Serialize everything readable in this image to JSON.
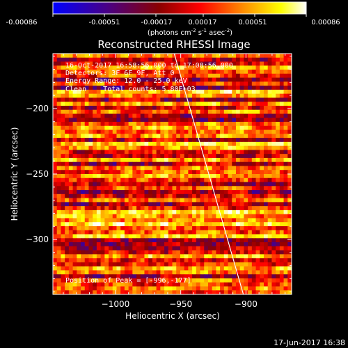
{
  "colorbar": {
    "ticks": [
      "-0.00086",
      "-0.00051",
      "-0.00017",
      "0.00017",
      "0.00051",
      "0.00086"
    ],
    "units_prefix": "(photons cm",
    "units_exp1": "-2",
    "units_mid1": " s",
    "units_exp2": "-1",
    "units_mid2": " asec",
    "units_exp3": "-2",
    "units_suffix": ")",
    "min": -0.00086,
    "max": 0.00086
  },
  "title": "Reconstructed RHESSI Image",
  "annotations": {
    "time_range": "16-Oct-2017 16:58:56.000 to 17:08:56.000",
    "detectors": "Detectors: 3F 6F 9F, Att 0",
    "energy": "Energy Range: 12.0 - 25.0 keV",
    "clean": "Clean    Total counts: 5.80E+03",
    "peak": "Position of Peak = [-996,-177]"
  },
  "footer": {
    "timestamp": "17-Jun-2017 16:38"
  },
  "chart_data": {
    "type": "heatmap",
    "title": "Reconstructed RHESSI Image",
    "xlabel": "Heliocentric X (arcsec)",
    "ylabel": "Heliocentric Y (arcsec)",
    "xlim": [
      -1048,
      -865
    ],
    "ylim": [
      -342,
      -158
    ],
    "x_ticks": [
      -1000,
      -950,
      -900
    ],
    "x_tick_labels": [
      "−1000",
      "−950",
      "−900"
    ],
    "y_ticks": [
      -200,
      -250,
      -300
    ],
    "y_tick_labels": [
      "−200",
      "−250",
      "−300"
    ],
    "limb_line": [
      [
        -955,
        -158
      ],
      [
        -902,
        -342
      ]
    ],
    "peak": [
      -996,
      -177
    ],
    "colormap": [
      "#0000ff",
      "#4b0082",
      "#8b0000",
      "#ff0000",
      "#ff8c00",
      "#ffff00",
      "#ffffff"
    ],
    "value_range": [
      -0.00086,
      0.00086
    ]
  }
}
